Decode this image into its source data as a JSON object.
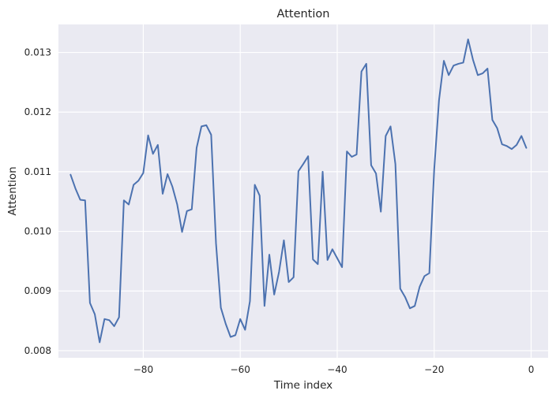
{
  "chart_data": {
    "type": "line",
    "title": "Attention",
    "xlabel": "Time index",
    "ylabel": "Attention",
    "xlim": [
      -97.5,
      3.5
    ],
    "ylim": [
      0.00788,
      0.01347
    ],
    "xticks": [
      -80,
      -60,
      -40,
      -20,
      0
    ],
    "xtick_labels": [
      "−80",
      "−60",
      "−40",
      "−20",
      "0"
    ],
    "yticks": [
      0.008,
      0.009,
      0.01,
      0.011,
      0.012,
      0.013
    ],
    "ytick_labels": [
      "0.008",
      "0.009",
      "0.010",
      "0.011",
      "0.012",
      "0.013"
    ],
    "grid": true,
    "background": "#eaeaf2",
    "series": [
      {
        "name": "Attention",
        "color": "#4c72b0",
        "x": [
          -95,
          -94,
          -93,
          -92,
          -91,
          -90,
          -89,
          -88,
          -87,
          -86,
          -85,
          -84,
          -83,
          -82,
          -81,
          -80,
          -79,
          -78,
          -77,
          -76,
          -75,
          -74,
          -73,
          -72,
          -71,
          -70,
          -69,
          -68,
          -67,
          -66,
          -65,
          -64,
          -63,
          -62,
          -61,
          -60,
          -59,
          -58,
          -57,
          -56,
          -55,
          -54,
          -53,
          -52,
          -51,
          -50,
          -49,
          -48,
          -47,
          -46,
          -45,
          -44,
          -43,
          -42,
          -41,
          -40,
          -39,
          -38,
          -37,
          -36,
          -35,
          -34,
          -33,
          -32,
          -31,
          -30,
          -29,
          -28,
          -27,
          -26,
          -25,
          -24,
          -23,
          -22,
          -21,
          -20,
          -19,
          -18,
          -17,
          -16,
          -15,
          -14,
          -13,
          -12,
          -11,
          -10,
          -9,
          -8,
          -7,
          -6,
          -5,
          -4,
          -3,
          -2,
          -1
        ],
        "y": [
          0.01095,
          0.01072,
          0.01053,
          0.01052,
          0.0088,
          0.00861,
          0.00814,
          0.00853,
          0.00851,
          0.00841,
          0.00856,
          0.01052,
          0.01045,
          0.01078,
          0.01085,
          0.01098,
          0.01161,
          0.0113,
          0.01145,
          0.01063,
          0.01096,
          0.01075,
          0.01045,
          0.00999,
          0.01034,
          0.01037,
          0.0114,
          0.01176,
          0.01178,
          0.01162,
          0.0098,
          0.00872,
          0.00845,
          0.00823,
          0.00826,
          0.00853,
          0.00835,
          0.00883,
          0.01078,
          0.0106,
          0.00875,
          0.00961,
          0.00894,
          0.00932,
          0.00985,
          0.00915,
          0.00923,
          0.01101,
          0.01113,
          0.01126,
          0.00953,
          0.00945,
          0.011,
          0.00952,
          0.0097,
          0.00955,
          0.0094,
          0.01134,
          0.01125,
          0.01129,
          0.01268,
          0.01281,
          0.01111,
          0.01097,
          0.01033,
          0.0116,
          0.01176,
          0.01113,
          0.00904,
          0.0089,
          0.00871,
          0.00875,
          0.00907,
          0.00925,
          0.0093,
          0.01103,
          0.0122,
          0.01286,
          0.01262,
          0.01278,
          0.01281,
          0.01283,
          0.01322,
          0.01288,
          0.01262,
          0.01265,
          0.01273,
          0.01187,
          0.01173,
          0.01146,
          0.01143,
          0.01138,
          0.01145,
          0.0116,
          0.0114
        ]
      }
    ]
  }
}
